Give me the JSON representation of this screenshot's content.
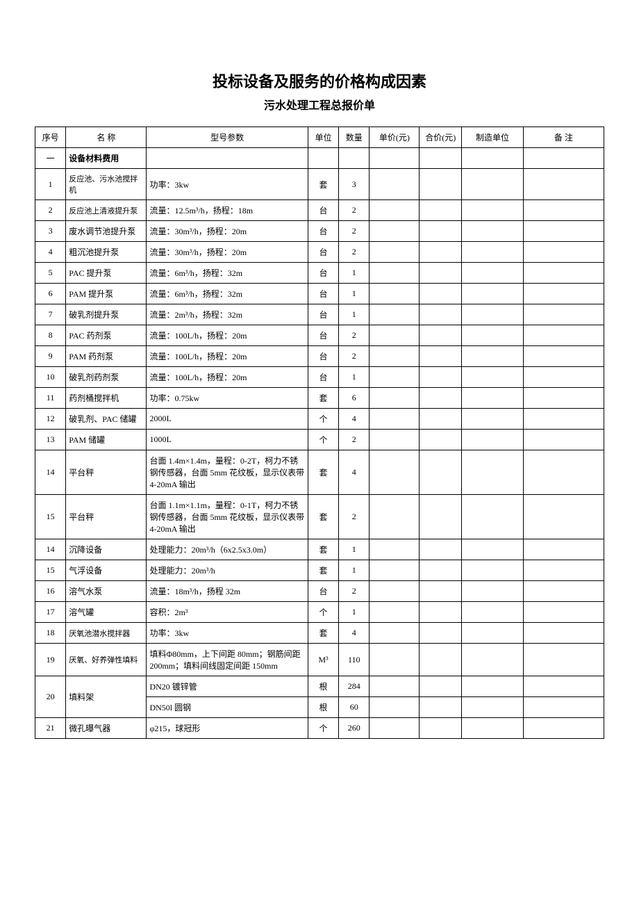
{
  "title": "投标设备及服务的价格构成因素",
  "subtitle": "污水处理工程总报价单",
  "headers": {
    "seq": "序号",
    "name": "名  称",
    "param": "型号参数",
    "unit": "单位",
    "qty": "数量",
    "unitprice": "单价(元)",
    "total": "合价(元)",
    "mfr": "制造单位",
    "remark": "备  注"
  },
  "section_1": {
    "seq": "一",
    "name": "设备材料费用"
  },
  "rows": [
    {
      "seq": "1",
      "name": "反应池、污水池搅拌机",
      "name_small": true,
      "param": "功率：3kw",
      "unit": "套",
      "qty": "3"
    },
    {
      "seq": "2",
      "name": "反应池上清液提升泵",
      "name_small": true,
      "param": "流量：12.5m³/h，扬程：18m",
      "unit": "台",
      "qty": "2"
    },
    {
      "seq": "3",
      "name": "废水调节池提升泵",
      "param": "流量：30m³/h，扬程：20m",
      "unit": "台",
      "qty": "2"
    },
    {
      "seq": "4",
      "name": "粗沉池提升泵",
      "param": "流量：30m³/h，扬程：20m",
      "unit": "台",
      "qty": "2"
    },
    {
      "seq": "5",
      "name": "PAC 提升泵",
      "param": "流量：6m³/h，扬程：32m",
      "unit": "台",
      "qty": "1"
    },
    {
      "seq": "6",
      "name": "PAM 提升泵",
      "param": "流量：6m³/h，扬程：32m",
      "unit": "台",
      "qty": "1"
    },
    {
      "seq": "7",
      "name": "破乳剂提升泵",
      "param": "流量：2m³/h，扬程：32m",
      "unit": "台",
      "qty": "1"
    },
    {
      "seq": "8",
      "name": "PAC 药剂泵",
      "param": "流量：100L/h，扬程：20m",
      "unit": "台",
      "qty": "2"
    },
    {
      "seq": "9",
      "name": "PAM 药剂泵",
      "param": "流量：100L/h，扬程：20m",
      "unit": "台",
      "qty": "2"
    },
    {
      "seq": "10",
      "name": "破乳剂药剂泵",
      "param": "流量：100L/h，扬程：20m",
      "unit": "台",
      "qty": "1"
    },
    {
      "seq": "11",
      "name": "药剂桶搅拌机",
      "param": "功率：0.75kw",
      "unit": "套",
      "qty": "6"
    },
    {
      "seq": "12",
      "name": "破乳剂、PAC 储罐",
      "param": "2000L",
      "unit": "个",
      "qty": "4"
    },
    {
      "seq": "13",
      "name": "PAM 储罐",
      "param": "1000L",
      "unit": "个",
      "qty": "2"
    },
    {
      "seq": "14",
      "name": "平台秤",
      "param": "台面 1.4m×1.4m，量程：0-2T，柯力不锈钢传感器，台面 5mm 花纹板，显示仪表带 4-20mA 输出",
      "unit": "套",
      "qty": "4"
    },
    {
      "seq": "15",
      "name": "平台秤",
      "param": "台面 1.1m×1.1m，量程：0-1T，柯力不锈钢传感器，台面 5mm 花纹板，显示仪表带 4-20mA 输出",
      "unit": "套",
      "qty": "2"
    },
    {
      "seq": "14",
      "name": "沉降设备",
      "param": "处理能力：20m³/h（6x2.5x3.0m）",
      "unit": "套",
      "qty": "1"
    },
    {
      "seq": "15",
      "name": "气浮设备",
      "param": "处理能力：20m³/h",
      "unit": "套",
      "qty": "1"
    },
    {
      "seq": "16",
      "name": "溶气水泵",
      "param": "流量：18m³/h，扬程 32m",
      "unit": "台",
      "qty": "2"
    },
    {
      "seq": "17",
      "name": "溶气罐",
      "param": "容积：2m³",
      "unit": "个",
      "qty": "1"
    },
    {
      "seq": "18",
      "name": "厌氧池潜水搅拌器",
      "name_small": true,
      "param": "功率：3kw",
      "unit": "套",
      "qty": "4"
    },
    {
      "seq": "19",
      "name": "厌氧、好养弹性填料",
      "name_small": true,
      "param": "填料Φ80mm，上下间距 80mm；钢筋间距 200mm；填料间线固定间距 150mm",
      "unit": "M³",
      "qty": "110"
    },
    {
      "seq": "20",
      "name": "填料架",
      "param": "DN20 镀锌管",
      "unit": "根",
      "qty": "284",
      "rowspan_seq_name": 2
    },
    {
      "seq": "",
      "name": "",
      "param": "DN50l 圆钢",
      "unit": "根",
      "qty": "60",
      "is_spanned": true
    },
    {
      "seq": "21",
      "name": "微孔曝气器",
      "param": "φ215，球冠形",
      "unit": "个",
      "qty": "260"
    }
  ],
  "styling": {
    "background_color": "#ffffff",
    "border_color": "#000000",
    "text_color": "#000000",
    "title_fontsize": 22,
    "subtitle_fontsize": 16,
    "cell_fontsize": 12,
    "small_cell_fontsize": 11,
    "col_widths": {
      "seq": 40,
      "name": 105,
      "param": 210,
      "unit": 40,
      "qty": 40,
      "unitprice": 65,
      "total": 55,
      "mfr": 80,
      "remark": 105
    }
  }
}
